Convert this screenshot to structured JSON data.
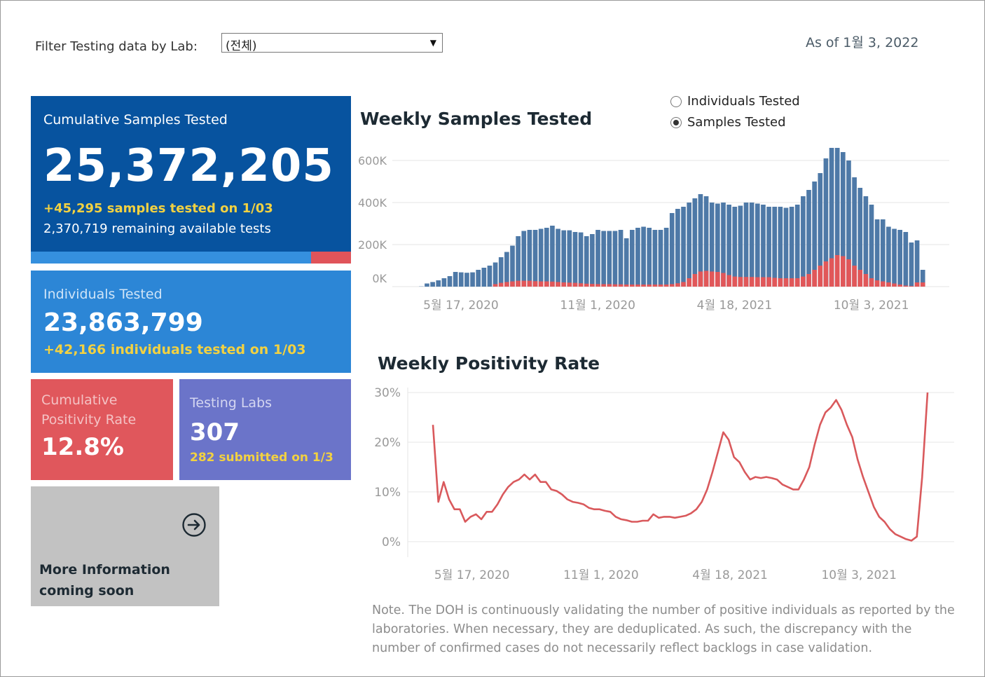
{
  "filter": {
    "label": "Filter Testing data by Lab:",
    "value": "(전체)",
    "arrow": "▼"
  },
  "as_of": "As of 1월 3, 2022",
  "cumulative": {
    "title": "Cumulative Samples Tested",
    "value": "25,372,205",
    "daily": "+45,295 samples tested on 1/03",
    "remaining": "2,370,719 remaining available tests"
  },
  "individuals": {
    "title": "Individuals Tested",
    "value": "23,863,799",
    "daily": "+42,166  individuals  tested on 1/03"
  },
  "positivity": {
    "title": "Cumulative Positivity Rate",
    "value": "12.8%"
  },
  "labs": {
    "title": "Testing Labs",
    "value": "307",
    "submitted": "282 submitted on 1/3"
  },
  "more_info": {
    "label": "More Information coming soon",
    "icon": "arrow-circle-right-icon"
  },
  "toggle": {
    "options": [
      {
        "label": "Individuals Tested",
        "selected": false
      },
      {
        "label": "Samples Tested",
        "selected": true
      }
    ]
  },
  "note": "Note. The DOH is continuously validating the number of positive individuals as reported by the laboratories. When necessary, they are deduplicated. As such, the discrepancy with the number of confirmed cases do not necessarily reflect backlogs in case validation.",
  "colors": {
    "blue_bar": "#4e79a7",
    "red_bar": "#e15759",
    "line": "#d9595c",
    "primary": "#07539f",
    "accent_yellow": "#f2d141"
  },
  "chart_data": [
    {
      "type": "bar",
      "title": "Weekly Samples Tested",
      "x_ticks": [
        "5월 17, 2020",
        "11월 1, 2020",
        "4월 18, 2021",
        "10월 3, 2021"
      ],
      "y_ticks": [
        "0K",
        "200K",
        "400K",
        "600K"
      ],
      "ylim": [
        0,
        680000
      ],
      "series": [
        {
          "values": [
            1000,
            15000,
            22000,
            30000,
            40000,
            50000,
            70000,
            68000,
            66000,
            68000,
            80000,
            90000,
            100000,
            115000,
            140000,
            165000,
            195000,
            240000,
            265000,
            270000,
            270000,
            275000,
            280000,
            290000,
            275000,
            268000,
            268000,
            260000,
            258000,
            240000,
            250000,
            270000,
            265000,
            265000,
            265000,
            270000,
            230000,
            270000,
            280000,
            285000,
            280000,
            270000,
            270000,
            280000,
            350000,
            370000,
            380000,
            400000,
            420000,
            440000,
            430000,
            400000,
            395000,
            400000,
            390000,
            380000,
            385000,
            400000,
            400000,
            395000,
            390000,
            380000,
            380000,
            380000,
            375000,
            380000,
            390000,
            430000,
            460000,
            500000,
            540000,
            610000,
            660000,
            660000,
            640000,
            600000,
            520000,
            470000,
            430000,
            390000,
            320000,
            320000,
            285000,
            275000,
            270000,
            260000,
            210000,
            220000,
            80000
          ]
        },
        {
          "values": [
            0,
            0,
            0,
            0,
            0,
            0,
            0,
            0,
            0,
            0,
            0,
            0,
            0,
            12000,
            18000,
            22000,
            25000,
            28000,
            28000,
            28000,
            26000,
            25000,
            25000,
            24000,
            22000,
            20000,
            19000,
            18000,
            16000,
            14000,
            13000,
            12000,
            12000,
            12000,
            11000,
            11000,
            10000,
            10000,
            10000,
            10000,
            10000,
            10000,
            10000,
            10000,
            12000,
            16000,
            22000,
            40000,
            60000,
            72000,
            75000,
            72000,
            70000,
            65000,
            55000,
            48000,
            46000,
            46000,
            46000,
            45000,
            45000,
            45000,
            42000,
            40000,
            40000,
            40000,
            40000,
            48000,
            60000,
            80000,
            100000,
            120000,
            135000,
            150000,
            145000,
            130000,
            100000,
            80000,
            60000,
            40000,
            30000,
            25000,
            20000,
            15000,
            10000,
            5000,
            3000,
            20000,
            20000
          ]
        }
      ]
    },
    {
      "type": "line",
      "title": "Weekly Positivity Rate",
      "x_ticks": [
        "5월 17, 2020",
        "11월 1, 2020",
        "4월 18, 2021",
        "10월 3, 2021"
      ],
      "y_ticks": [
        "0%",
        "10%",
        "20%",
        "30%"
      ],
      "ylim": [
        -2,
        31
      ],
      "series": [
        {
          "values": [
            23.5,
            8,
            12,
            8.5,
            6.5,
            6.5,
            4,
            5,
            5.5,
            4.5,
            6,
            6,
            7.5,
            9.5,
            11,
            12,
            12.5,
            13.5,
            12.5,
            13.5,
            12,
            12,
            10.5,
            10.2,
            9.5,
            8.5,
            8,
            7.8,
            7.5,
            6.8,
            6.5,
            6.5,
            6.2,
            6,
            5,
            4.5,
            4.3,
            4,
            4,
            4.2,
            4.2,
            5.5,
            4.8,
            5,
            5,
            4.8,
            5,
            5.2,
            5.7,
            6.5,
            8,
            10.5,
            14,
            18,
            22,
            20.5,
            17,
            16,
            14,
            12.5,
            13,
            12.8,
            13,
            12.8,
            12.5,
            11.5,
            11,
            10.5,
            10.5,
            12.5,
            15,
            19.5,
            23.5,
            26,
            27,
            28.5,
            26.5,
            23.5,
            21,
            16.5,
            13,
            10,
            7,
            5,
            4,
            2.5,
            1.5,
            1,
            0.5,
            0.2,
            1,
            13,
            30
          ]
        }
      ]
    }
  ]
}
